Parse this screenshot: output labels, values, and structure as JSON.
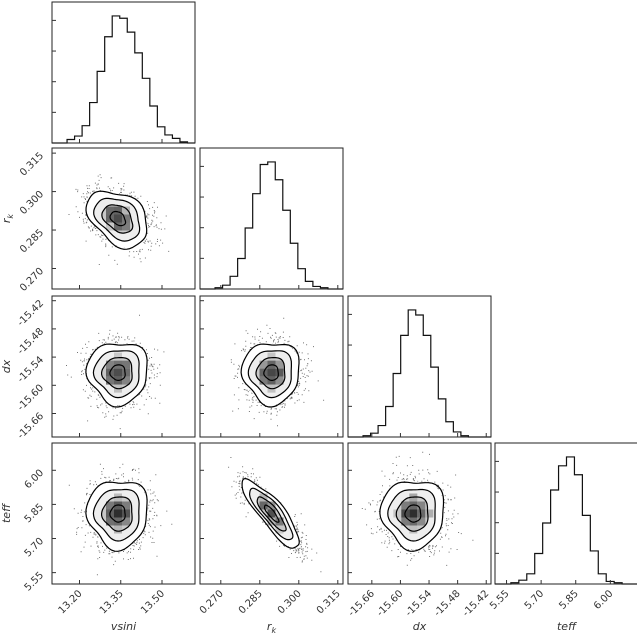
{
  "chart_data": {
    "type": "corner",
    "parameters": [
      {
        "key": "vsini",
        "label": "vsini",
        "range": [
          13.1,
          13.62
        ],
        "mean": 13.34,
        "sd": 0.055,
        "ticks": [
          "13.20",
          "13.35",
          "13.50"
        ]
      },
      {
        "key": "r_k",
        "label": "r",
        "label_sub": "k",
        "range": [
          0.262,
          0.317
        ],
        "mean": 0.2895,
        "sd": 0.0055,
        "ticks": [
          "0.270",
          "0.285",
          "0.300",
          "0.315"
        ]
      },
      {
        "key": "dx",
        "label": "dx",
        "range": [
          -15.71,
          -15.41
        ],
        "mean": -15.573,
        "sd": 0.033,
        "ticks": [
          "-15.66",
          "-15.60",
          "-15.54",
          "-15.48",
          "-15.42"
        ]
      },
      {
        "key": "teff",
        "label": "teff",
        "range": [
          5.5,
          6.12
        ],
        "mean": 5.81,
        "sd": 0.075,
        "ticks": [
          "5.55",
          "5.70",
          "5.85",
          "6.00"
        ]
      }
    ],
    "correlations": {
      "1-0": -0.35,
      "2-0": 0.0,
      "2-1": 0.0,
      "3-0": 0.0,
      "3-1": -0.85,
      "3-2": 0.0
    },
    "histograms": {
      "vsini": [
        0,
        0,
        3,
        6,
        15,
        35,
        62,
        92,
        110,
        108,
        96,
        78,
        56,
        32,
        14,
        7,
        4,
        1,
        0
      ],
      "r_k": [
        0,
        0,
        1,
        3,
        10,
        24,
        48,
        75,
        98,
        100,
        86,
        62,
        36,
        16,
        6,
        2,
        1,
        0,
        0
      ],
      "dx": [
        0,
        0,
        1,
        3,
        9,
        24,
        50,
        80,
        100,
        96,
        80,
        55,
        30,
        12,
        4,
        1,
        0,
        0,
        0
      ],
      "teff": [
        0,
        0,
        1,
        3,
        8,
        24,
        48,
        74,
        93,
        100,
        86,
        54,
        26,
        8,
        2,
        1,
        0,
        0
      ]
    },
    "contour_levels": [
      "0.5σ",
      "1σ",
      "1.5σ",
      "2σ"
    ],
    "colors": {
      "ink": "#000000",
      "frame": "#222222",
      "grey": "#4a4a4a"
    }
  }
}
